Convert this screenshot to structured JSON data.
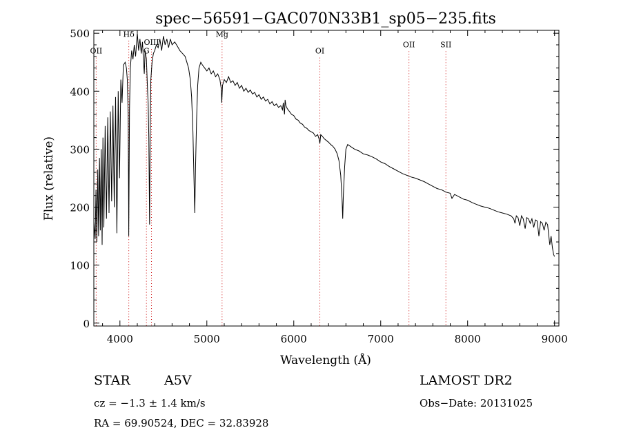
{
  "chart_data": {
    "type": "line",
    "title": "spec−56591−GAC070N33B1_sp05−235.fits",
    "xlabel": "Wavelength (Å)",
    "ylabel": "Flux (relative)",
    "xlim": [
      3700,
      9050
    ],
    "ylim": [
      -5,
      505
    ],
    "xticks": [
      4000,
      5000,
      6000,
      7000,
      8000,
      9000
    ],
    "yticks": [
      0,
      100,
      200,
      300,
      400,
      500
    ],
    "line_color": "#000000",
    "marker_color": "#cc0000",
    "spectrum": [
      [
        3700,
        175
      ],
      [
        3715,
        145
      ],
      [
        3725,
        230
      ],
      [
        3735,
        140
      ],
      [
        3745,
        265
      ],
      [
        3755,
        150
      ],
      [
        3765,
        285
      ],
      [
        3775,
        160
      ],
      [
        3785,
        300
      ],
      [
        3795,
        135
      ],
      [
        3805,
        320
      ],
      [
        3815,
        165
      ],
      [
        3830,
        340
      ],
      [
        3845,
        180
      ],
      [
        3860,
        355
      ],
      [
        3875,
        190
      ],
      [
        3890,
        365
      ],
      [
        3905,
        210
      ],
      [
        3920,
        375
      ],
      [
        3935,
        200
      ],
      [
        3950,
        390
      ],
      [
        3965,
        155
      ],
      [
        3980,
        400
      ],
      [
        3995,
        250
      ],
      [
        4010,
        420
      ],
      [
        4025,
        380
      ],
      [
        4040,
        445
      ],
      [
        4060,
        450
      ],
      [
        4075,
        440
      ],
      [
        4085,
        420
      ],
      [
        4095,
        360
      ],
      [
        4102,
        150
      ],
      [
        4110,
        370
      ],
      [
        4120,
        440
      ],
      [
        4135,
        470
      ],
      [
        4150,
        455
      ],
      [
        4165,
        480
      ],
      [
        4180,
        460
      ],
      [
        4200,
        500
      ],
      [
        4215,
        470
      ],
      [
        4230,
        490
      ],
      [
        4245,
        465
      ],
      [
        4260,
        485
      ],
      [
        4270,
        455
      ],
      [
        4280,
        430
      ],
      [
        4290,
        470
      ],
      [
        4305,
        455
      ],
      [
        4318,
        400
      ],
      [
        4325,
        380
      ],
      [
        4333,
        320
      ],
      [
        4341,
        170
      ],
      [
        4348,
        330
      ],
      [
        4356,
        420
      ],
      [
        4370,
        450
      ],
      [
        4385,
        465
      ],
      [
        4400,
        470
      ],
      [
        4420,
        480
      ],
      [
        4440,
        475
      ],
      [
        4460,
        490
      ],
      [
        4480,
        470
      ],
      [
        4500,
        495
      ],
      [
        4520,
        480
      ],
      [
        4540,
        490
      ],
      [
        4560,
        475
      ],
      [
        4580,
        490
      ],
      [
        4600,
        480
      ],
      [
        4630,
        485
      ],
      [
        4660,
        478
      ],
      [
        4690,
        470
      ],
      [
        4720,
        465
      ],
      [
        4750,
        460
      ],
      [
        4770,
        450
      ],
      [
        4790,
        440
      ],
      [
        4810,
        420
      ],
      [
        4825,
        390
      ],
      [
        4840,
        330
      ],
      [
        4850,
        260
      ],
      [
        4861,
        190
      ],
      [
        4870,
        270
      ],
      [
        4882,
        350
      ],
      [
        4895,
        410
      ],
      [
        4910,
        440
      ],
      [
        4930,
        450
      ],
      [
        4950,
        445
      ],
      [
        4975,
        440
      ],
      [
        5000,
        435
      ],
      [
        5025,
        440
      ],
      [
        5050,
        430
      ],
      [
        5075,
        435
      ],
      [
        5100,
        425
      ],
      [
        5125,
        430
      ],
      [
        5150,
        420
      ],
      [
        5165,
        405
      ],
      [
        5172,
        380
      ],
      [
        5180,
        410
      ],
      [
        5200,
        420
      ],
      [
        5225,
        415
      ],
      [
        5250,
        425
      ],
      [
        5275,
        415
      ],
      [
        5300,
        418
      ],
      [
        5325,
        410
      ],
      [
        5350,
        415
      ],
      [
        5375,
        405
      ],
      [
        5400,
        410
      ],
      [
        5425,
        400
      ],
      [
        5450,
        405
      ],
      [
        5475,
        398
      ],
      [
        5500,
        402
      ],
      [
        5525,
        395
      ],
      [
        5550,
        398
      ],
      [
        5575,
        390
      ],
      [
        5600,
        394
      ],
      [
        5625,
        386
      ],
      [
        5650,
        390
      ],
      [
        5675,
        383
      ],
      [
        5700,
        386
      ],
      [
        5725,
        378
      ],
      [
        5750,
        382
      ],
      [
        5775,
        375
      ],
      [
        5800,
        378
      ],
      [
        5825,
        372
      ],
      [
        5850,
        375
      ],
      [
        5870,
        368
      ],
      [
        5880,
        380
      ],
      [
        5893,
        360
      ],
      [
        5900,
        385
      ],
      [
        5910,
        375
      ],
      [
        5925,
        370
      ],
      [
        5950,
        365
      ],
      [
        5975,
        360
      ],
      [
        6000,
        358
      ],
      [
        6025,
        352
      ],
      [
        6050,
        350
      ],
      [
        6075,
        345
      ],
      [
        6100,
        343
      ],
      [
        6125,
        338
      ],
      [
        6150,
        336
      ],
      [
        6175,
        332
      ],
      [
        6200,
        330
      ],
      [
        6225,
        328
      ],
      [
        6250,
        322
      ],
      [
        6275,
        325
      ],
      [
        6290,
        318
      ],
      [
        6300,
        310
      ],
      [
        6310,
        325
      ],
      [
        6330,
        322
      ],
      [
        6350,
        318
      ],
      [
        6375,
        315
      ],
      [
        6400,
        312
      ],
      [
        6425,
        308
      ],
      [
        6450,
        305
      ],
      [
        6475,
        300
      ],
      [
        6500,
        292
      ],
      [
        6520,
        280
      ],
      [
        6540,
        255
      ],
      [
        6555,
        215
      ],
      [
        6563,
        180
      ],
      [
        6570,
        220
      ],
      [
        6585,
        270
      ],
      [
        6600,
        300
      ],
      [
        6620,
        308
      ],
      [
        6650,
        305
      ],
      [
        6700,
        300
      ],
      [
        6750,
        297
      ],
      [
        6800,
        292
      ],
      [
        6850,
        290
      ],
      [
        6900,
        287
      ],
      [
        6950,
        283
      ],
      [
        7000,
        278
      ],
      [
        7050,
        275
      ],
      [
        7100,
        270
      ],
      [
        7150,
        266
      ],
      [
        7200,
        262
      ],
      [
        7250,
        258
      ],
      [
        7300,
        255
      ],
      [
        7350,
        252
      ],
      [
        7400,
        250
      ],
      [
        7450,
        247
      ],
      [
        7500,
        244
      ],
      [
        7550,
        240
      ],
      [
        7600,
        236
      ],
      [
        7650,
        232
      ],
      [
        7700,
        230
      ],
      [
        7750,
        226
      ],
      [
        7800,
        224
      ],
      [
        7820,
        215
      ],
      [
        7850,
        222
      ],
      [
        7900,
        218
      ],
      [
        7950,
        214
      ],
      [
        8000,
        212
      ],
      [
        8050,
        208
      ],
      [
        8100,
        205
      ],
      [
        8150,
        202
      ],
      [
        8200,
        200
      ],
      [
        8250,
        198
      ],
      [
        8300,
        195
      ],
      [
        8350,
        192
      ],
      [
        8400,
        190
      ],
      [
        8450,
        188
      ],
      [
        8500,
        185
      ],
      [
        8530,
        180
      ],
      [
        8545,
        172
      ],
      [
        8560,
        185
      ],
      [
        8580,
        182
      ],
      [
        8600,
        168
      ],
      [
        8620,
        185
      ],
      [
        8640,
        180
      ],
      [
        8662,
        163
      ],
      [
        8680,
        182
      ],
      [
        8700,
        180
      ],
      [
        8720,
        172
      ],
      [
        8740,
        180
      ],
      [
        8760,
        165
      ],
      [
        8780,
        178
      ],
      [
        8800,
        176
      ],
      [
        8820,
        150
      ],
      [
        8840,
        175
      ],
      [
        8860,
        172
      ],
      [
        8880,
        160
      ],
      [
        8900,
        174
      ],
      [
        8920,
        170
      ],
      [
        8945,
        135
      ],
      [
        8960,
        150
      ],
      [
        8975,
        130
      ],
      [
        8990,
        118
      ],
      [
        9000,
        115
      ]
    ],
    "line_markers": [
      {
        "label": "OII",
        "x": 3727,
        "label_y": 465
      },
      {
        "label": "Hδ",
        "x": 4102,
        "label_y": 494
      },
      {
        "label": "G",
        "x": 4305,
        "label_y": 465
      },
      {
        "label": "OIII",
        "x": 4363,
        "label_y": 480
      },
      {
        "label": "Mg",
        "x": 5175,
        "label_y": 494
      },
      {
        "label": "OI",
        "x": 6300,
        "label_y": 465
      },
      {
        "label": "OII",
        "x": 7325,
        "label_y": 476
      },
      {
        "label": "SII",
        "x": 7750,
        "label_y": 476
      }
    ]
  },
  "info": {
    "object_type": "STAR",
    "subclass": "A5V",
    "redshift": "cz = −1.3 ± 1.4 km/s",
    "coords": "RA =  69.90524, DEC =  32.83928",
    "survey": "LAMOST DR2",
    "obs_date": "Obs−Date: 20131025"
  }
}
